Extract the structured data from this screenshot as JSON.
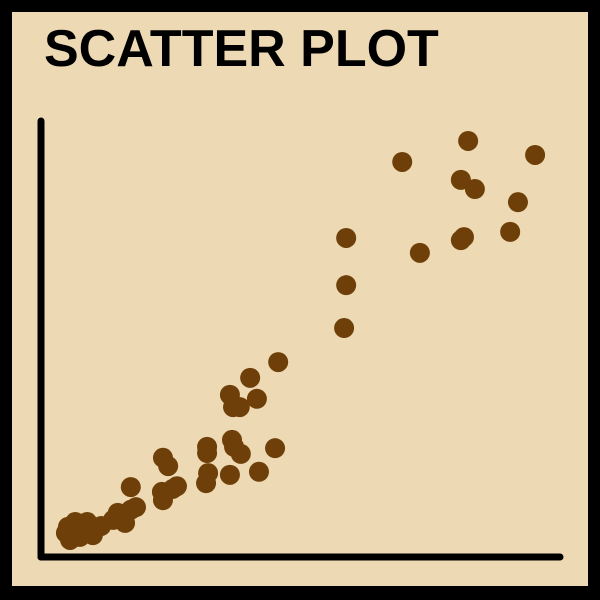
{
  "chart_data": {
    "type": "scatter",
    "title": "SCATTER PLOT",
    "color": "#6e3f08",
    "xlim": [
      0,
      100
    ],
    "ylim": [
      0,
      100
    ],
    "x": [
      82.3,
      69.6,
      95.2,
      80.9,
      83.6,
      91.9,
      58.8,
      81.5,
      80.9,
      90.4,
      73.0,
      58.8,
      58.4,
      45.7,
      40.3,
      36.4,
      41.6,
      37.0,
      38.3,
      32.0,
      32.0,
      36.8,
      37.2,
      38.5,
      45.1,
      23.5,
      24.5,
      32.2,
      36.4,
      42.0,
      31.8,
      17.3,
      26.2,
      25.4,
      23.3,
      23.5,
      18.3,
      17.3,
      14.8,
      13.9,
      16.2,
      11.6,
      8.9,
      6.6,
      5.2,
      4.8,
      7.5,
      10.0,
      5.6
    ],
    "y": [
      95.2,
      90.4,
      92.0,
      86.3,
      84.2,
      81.2,
      73.0,
      73.2,
      72.5,
      74.4,
      69.6,
      62.2,
      52.4,
      44.6,
      41.0,
      37.1,
      36.2,
      34.3,
      34.3,
      25.2,
      23.8,
      26.8,
      25.2,
      23.6,
      24.9,
      22.7,
      20.8,
      19.2,
      18.8,
      19.5,
      16.9,
      16.0,
      16.2,
      15.6,
      14.9,
      13.0,
      11.4,
      10.8,
      10.1,
      8.5,
      7.8,
      7.1,
      8.0,
      8.0,
      6.9,
      5.5,
      4.6,
      5.0,
      3.9
    ]
  }
}
